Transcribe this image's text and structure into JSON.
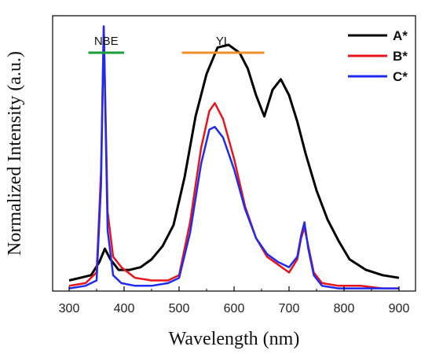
{
  "chart_data": {
    "type": "line",
    "title": "",
    "xlabel": "Wavelength (nm)",
    "ylabel": "Normalized Intensity (a.u.)",
    "xlim": [
      270,
      930
    ],
    "ylim": [
      0,
      1.04
    ],
    "xticks": [
      300,
      400,
      500,
      600,
      700,
      800,
      900
    ],
    "grid": false,
    "legend_position": "top-right",
    "annotations": [
      {
        "text": "NBE",
        "range": [
          335,
          400
        ],
        "color": "#1a9e3b"
      },
      {
        "text": "YL",
        "range": [
          505,
          655
        ],
        "color": "#f0902c"
      }
    ],
    "series": [
      {
        "name": "A*",
        "color": "#000000",
        "x": [
          300,
          320,
          340,
          355,
          365,
          375,
          390,
          410,
          430,
          450,
          470,
          490,
          510,
          530,
          550,
          570,
          590,
          610,
          625,
          640,
          655,
          670,
          685,
          700,
          715,
          730,
          750,
          770,
          790,
          810,
          840,
          870,
          900
        ],
        "y": [
          0.04,
          0.05,
          0.06,
          0.11,
          0.16,
          0.12,
          0.08,
          0.08,
          0.09,
          0.12,
          0.17,
          0.25,
          0.43,
          0.66,
          0.82,
          0.92,
          0.93,
          0.9,
          0.84,
          0.74,
          0.66,
          0.76,
          0.8,
          0.74,
          0.64,
          0.52,
          0.38,
          0.27,
          0.19,
          0.12,
          0.08,
          0.06,
          0.05
        ]
      },
      {
        "name": "B*",
        "color": "#e8141b",
        "x": [
          300,
          330,
          350,
          358,
          363,
          370,
          380,
          395,
          420,
          450,
          480,
          500,
          520,
          540,
          555,
          565,
          580,
          600,
          620,
          640,
          660,
          680,
          700,
          715,
          722,
          728,
          735,
          745,
          760,
          790,
          830,
          870,
          900
        ],
        "y": [
          0.02,
          0.03,
          0.07,
          0.45,
          1.0,
          0.3,
          0.13,
          0.09,
          0.05,
          0.04,
          0.04,
          0.06,
          0.26,
          0.54,
          0.68,
          0.71,
          0.65,
          0.5,
          0.32,
          0.2,
          0.13,
          0.1,
          0.07,
          0.12,
          0.2,
          0.24,
          0.17,
          0.07,
          0.03,
          0.02,
          0.02,
          0.01,
          0.01
        ]
      },
      {
        "name": "C*",
        "color": "#1f2cf0",
        "x": [
          300,
          330,
          350,
          358,
          363,
          370,
          380,
          395,
          420,
          450,
          480,
          500,
          520,
          540,
          555,
          565,
          580,
          600,
          620,
          640,
          660,
          680,
          700,
          715,
          722,
          728,
          735,
          745,
          760,
          790,
          830,
          870,
          900
        ],
        "y": [
          0.01,
          0.02,
          0.04,
          0.4,
          1.0,
          0.23,
          0.06,
          0.03,
          0.02,
          0.02,
          0.03,
          0.05,
          0.22,
          0.48,
          0.61,
          0.62,
          0.58,
          0.46,
          0.31,
          0.2,
          0.14,
          0.11,
          0.09,
          0.13,
          0.21,
          0.26,
          0.16,
          0.06,
          0.02,
          0.01,
          0.01,
          0.01,
          0.01
        ]
      }
    ]
  }
}
